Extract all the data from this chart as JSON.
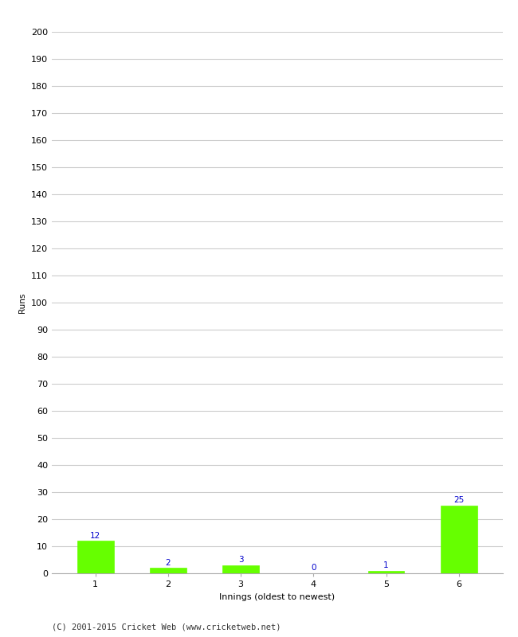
{
  "xlabel": "Innings (oldest to newest)",
  "ylabel": "Runs",
  "categories": [
    1,
    2,
    3,
    4,
    5,
    6
  ],
  "values": [
    12,
    2,
    3,
    0,
    1,
    25
  ],
  "bar_color": "#66ff00",
  "bar_edge_color": "#66ff00",
  "label_color": "#0000cc",
  "ylim": [
    0,
    200
  ],
  "yticks": [
    0,
    10,
    20,
    30,
    40,
    50,
    60,
    70,
    80,
    90,
    100,
    110,
    120,
    130,
    140,
    150,
    160,
    170,
    180,
    190,
    200
  ],
  "footer": "(C) 2001-2015 Cricket Web (www.cricketweb.net)",
  "background_color": "#ffffff",
  "grid_color": "#cccccc",
  "label_fontsize": 7.5,
  "axis_fontsize": 8,
  "ylabel_fontsize": 7.5,
  "footer_fontsize": 7.5
}
